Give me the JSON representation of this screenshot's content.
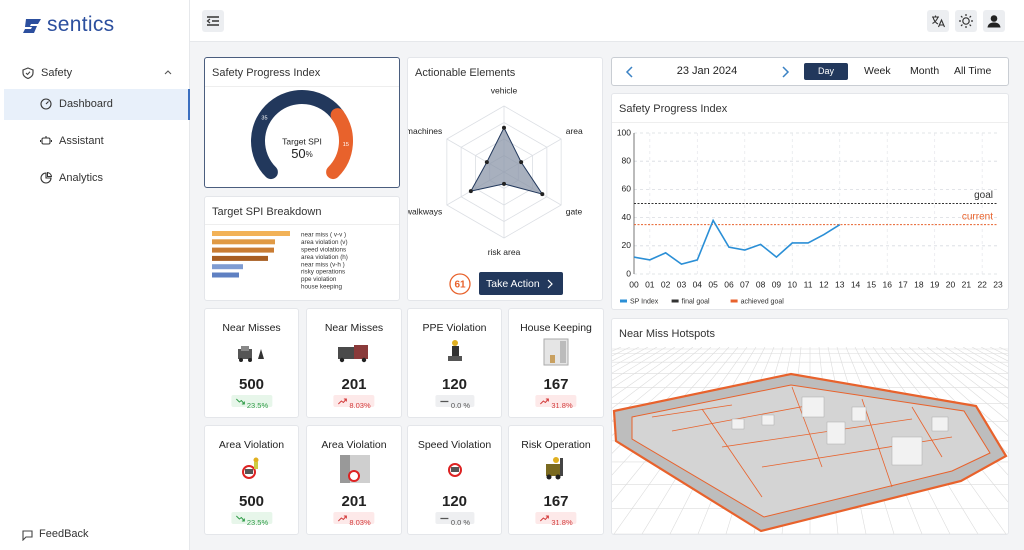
{
  "sidebar": {
    "brand": "sentics",
    "section": "Safety",
    "items": [
      "Dashboard",
      "Assistant",
      "Analytics"
    ],
    "active": 0,
    "feedback": "FeedBack"
  },
  "gauge": {
    "title": "Safety Progress Index",
    "segments": [
      {
        "value": 35,
        "color": "#22385c"
      },
      {
        "value": 15,
        "color": "#e8622c"
      }
    ],
    "caption": "Target SPI",
    "value": "50",
    "unit": "%"
  },
  "breakdown": {
    "title": "Target SPI Breakdown",
    "labels": [
      "near miss ( v-v )",
      "area violation (v)",
      "speed violations",
      "area violation (h)",
      "near miss (v-h )",
      "risky operations",
      "ppe violation",
      "house keeping"
    ],
    "values": [
      78,
      63,
      62,
      56,
      31,
      27,
      0,
      0
    ],
    "colors": [
      "#f2b257",
      "#e09a45",
      "#c97c33",
      "#a85e22",
      "#7f9cd2",
      "#5f80c2",
      "#5f80c2",
      "#5f80c2"
    ]
  },
  "radar": {
    "title": "Actionable Elements",
    "axes": [
      "vehicle",
      "area",
      "gate",
      "risk area",
      "walkways",
      "machines"
    ],
    "values": [
      67,
      30,
      67,
      18,
      58,
      30
    ],
    "count": "61",
    "button": "Take Action"
  },
  "cards": [
    {
      "title": "Near Misses",
      "value": 500,
      "change": "23.5%",
      "trend": "down"
    },
    {
      "title": "Near Misses",
      "value": 201,
      "change": "8.03%",
      "trend": "up"
    },
    {
      "title": "PPE Violation",
      "value": 120,
      "change": "0.0 %",
      "trend": "flat"
    },
    {
      "title": "House Keeping",
      "value": 167,
      "change": "31.8%",
      "trend": "up"
    },
    {
      "title": "Area Violation",
      "value": 500,
      "change": "23.5%",
      "trend": "down"
    },
    {
      "title": "Area Violation",
      "value": 201,
      "change": "8.03%",
      "trend": "up"
    },
    {
      "title": "Speed Violation",
      "value": 120,
      "change": "0.0 %",
      "trend": "flat"
    },
    {
      "title": "Risk Operation",
      "value": 167,
      "change": "31.8%",
      "trend": "up"
    }
  ],
  "date": {
    "label": "23 Jan 2024",
    "ranges": [
      "Day",
      "Week",
      "Month",
      "All Time"
    ],
    "active": 0
  },
  "chart_data": {
    "type": "line",
    "title": "Safety Progress Index",
    "categories": [
      "00",
      "01",
      "02",
      "03",
      "04",
      "05",
      "06",
      "07",
      "08",
      "09",
      "10",
      "11",
      "12",
      "13",
      "14",
      "15",
      "16",
      "17",
      "18",
      "19",
      "20",
      "21",
      "22",
      "23"
    ],
    "series": [
      {
        "name": "SP Index",
        "color": "#2b8fd6",
        "values": [
          12,
          10,
          15,
          7,
          10,
          38,
          19,
          17,
          21,
          12,
          22,
          22,
          28,
          35,
          null,
          null,
          null,
          null,
          null,
          null,
          null,
          null,
          null,
          null
        ]
      }
    ],
    "lines": [
      {
        "name": "final goal",
        "label": "goal",
        "value": 50,
        "color": "#333333"
      },
      {
        "name": "achieved goal",
        "label": "current",
        "value": 35,
        "color": "#e8622c"
      }
    ],
    "ylim": [
      0,
      100
    ],
    "yticks": [
      0,
      20,
      40,
      60,
      80,
      100
    ],
    "grid": true
  },
  "hotspots": {
    "title": "Near Miss Hotspots"
  }
}
